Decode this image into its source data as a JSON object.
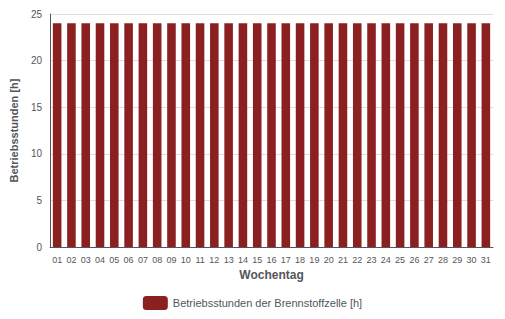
{
  "chart_data": {
    "type": "bar",
    "xlabel": "Wochentag",
    "ylabel": "Betriebsstunden [h]",
    "categories": [
      "01",
      "02",
      "03",
      "04",
      "05",
      "06",
      "07",
      "08",
      "09",
      "10",
      "11",
      "12",
      "13",
      "14",
      "15",
      "16",
      "17",
      "18",
      "19",
      "20",
      "21",
      "22",
      "23",
      "24",
      "25",
      "26",
      "27",
      "28",
      "29",
      "30",
      "31"
    ],
    "series": [
      {
        "name": "Betriebsstunden der Brennstoffzelle [h]",
        "color": "#8B2020",
        "values": [
          24,
          24,
          24,
          24,
          24,
          24,
          24,
          24,
          24,
          24,
          24,
          24,
          24,
          24,
          24,
          24,
          24,
          24,
          24,
          24,
          24,
          24,
          24,
          24,
          24,
          24,
          24,
          24,
          24,
          24,
          24
        ]
      }
    ],
    "ylim": [
      0,
      25
    ],
    "yticks": [
      0,
      5,
      10,
      15,
      20,
      25
    ],
    "grid": true,
    "legend": "bottom"
  }
}
